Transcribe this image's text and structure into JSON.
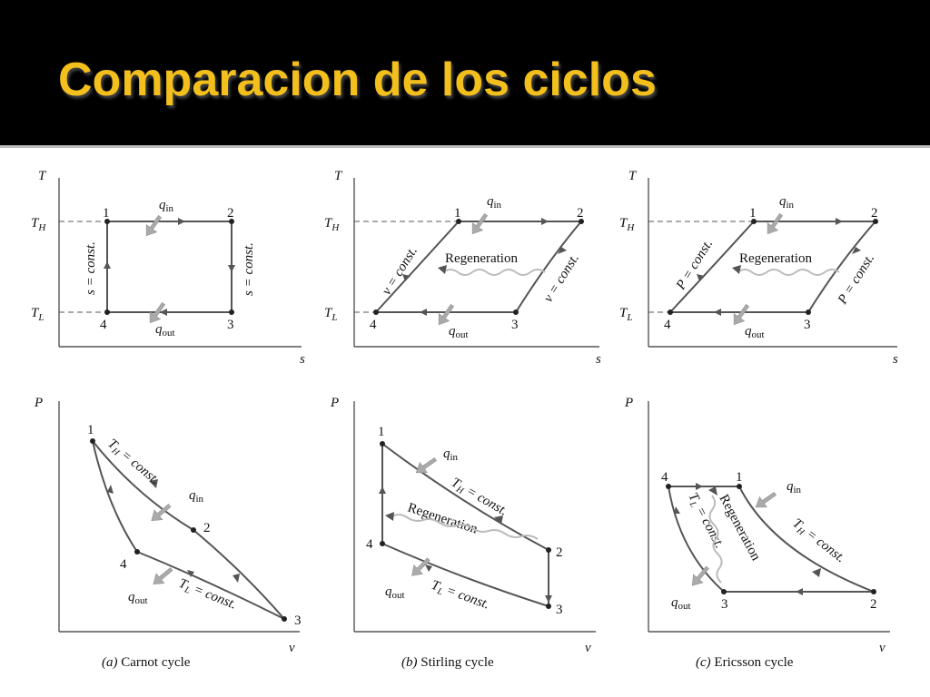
{
  "title": "Comparacion de los ciclos",
  "colors": {
    "header_bg": "#000000",
    "title": "#f3bf1d",
    "process_line": "#555555",
    "heat_arrow": "#aaaaaa"
  },
  "labels": {
    "T": "T",
    "s": "s",
    "P": "P",
    "v": "v",
    "T_main": "T",
    "H_sub": "H",
    "L_sub": "L",
    "q": "q",
    "in_sub": "in",
    "out_sub": "out",
    "s_const": "s = const.",
    "v_const": "v = const.",
    "P_const": "P = const.",
    "regeneration": "Regeneration",
    "const_suffix": " = const."
  },
  "state_points": [
    "1",
    "2",
    "3",
    "4"
  ],
  "cycles": [
    {
      "letter": "(a)",
      "name": "Carnot cycle"
    },
    {
      "letter": "(b)",
      "name": "Stirling cycle"
    },
    {
      "letter": "(c)",
      "name": "Ericsson cycle"
    }
  ]
}
